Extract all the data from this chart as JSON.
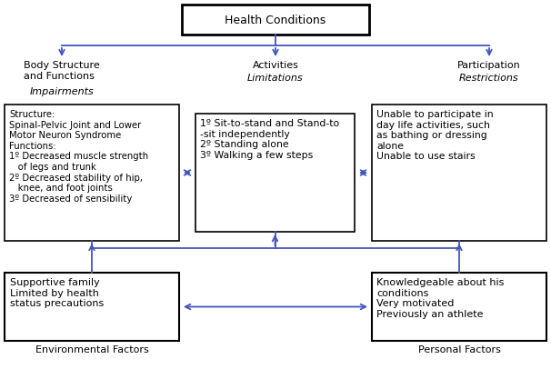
{
  "title": "Health Conditions",
  "arrow_color": "#4455bb",
  "box_edge_color": "#000000",
  "text_color": "#000000",
  "background_color": "#ffffff",
  "labels": {
    "body_structure_title": "Body Structure\nand Functions",
    "body_structure_italic": "Impairments",
    "activities_title": "Activities",
    "activities_italic": "Limitations",
    "participation_title": "Participation",
    "participation_italic": "Restrictions",
    "body_box": "Structure:\nSpinal-Pelvic Joint and Lower\nMotor Neuron Syndrome\nFunctions:\n1º Decreased muscle strength\n   of legs and trunk\n2º Decreased stability of hip,\n   knee, and foot joints\n3º Decreased of sensibility",
    "activity_box": "1º Sit-to-stand and Stand-to\n-sit independently\n2º Standing alone\n3º Walking a few steps",
    "participation_box": "Unable to participate in\nday life activities, such\nas bathing or dressing\nalone\nUnable to use stairs",
    "env_box": "Supportive family\nLimited by health\nstatus precautions",
    "personal_box": "Knowledgeable about his\nconditions\nVery motivated\nPreviously an athlete",
    "env_label": "Environmental Factors",
    "personal_label": "Personal Factors"
  }
}
